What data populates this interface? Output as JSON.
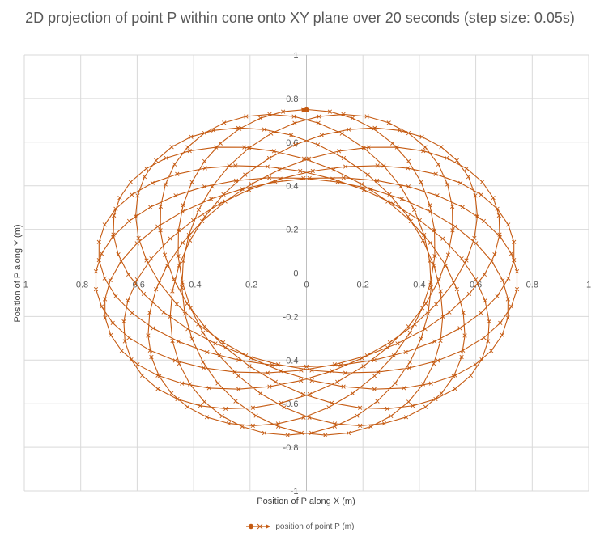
{
  "chart_data": {
    "type": "scatter",
    "title": "2D projection of point P within cone onto XY plane over 20 seconds (step size: 0.05s)",
    "xlabel": "Position of P along X (m)",
    "ylabel": "Position of P along Y (m)",
    "xlim": [
      -1,
      1
    ],
    "ylim": [
      -1,
      1
    ],
    "x_ticks": [
      -1,
      -0.8,
      -0.6,
      -0.4,
      -0.2,
      0,
      0.2,
      0.4,
      0.6,
      0.8,
      1
    ],
    "y_ticks": [
      -1,
      -0.8,
      -0.6,
      -0.4,
      -0.2,
      0,
      0.2,
      0.4,
      0.6,
      0.8,
      1
    ],
    "x_tick_labels": [
      "-1",
      "-0.8",
      "-0.6",
      "-0.4",
      "-0.2",
      "0",
      "0.2",
      "0.4",
      "0.6",
      "0.8",
      "1"
    ],
    "y_tick_labels": [
      "-1",
      "-0.8",
      "-0.6",
      "-0.4",
      "-0.2",
      "0",
      "0.2",
      "0.4",
      "0.6",
      "0.8",
      "1"
    ],
    "grid": true,
    "legend_position": "bottom",
    "series": [
      {
        "name": "position of point P (m)",
        "color": "#C55A11",
        "marker": "x",
        "start_point": [
          0,
          0.75
        ],
        "end_point": [
          0.09,
          -0.42
        ],
        "model": {
          "outer_radius_x": 0.75,
          "outer_radius_y": 0.75,
          "inner_radius_x": 0.44,
          "inner_radius_y": 0.43,
          "duration_s": 20,
          "step_s": 0.05
        }
      }
    ]
  }
}
